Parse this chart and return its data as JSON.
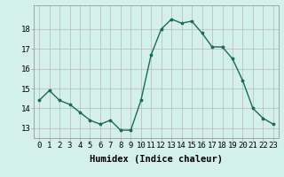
{
  "x": [
    0,
    1,
    2,
    3,
    4,
    5,
    6,
    7,
    8,
    9,
    10,
    11,
    12,
    13,
    14,
    15,
    16,
    17,
    18,
    19,
    20,
    21,
    22,
    23
  ],
  "y": [
    14.4,
    14.9,
    14.4,
    14.2,
    13.8,
    13.4,
    13.2,
    13.4,
    12.9,
    12.9,
    14.4,
    16.7,
    18.0,
    18.5,
    18.3,
    18.4,
    17.8,
    17.1,
    17.1,
    16.5,
    15.4,
    14.0,
    13.5,
    13.2
  ],
  "line_color": "#1a6b5a",
  "marker": "*",
  "marker_size": 2.5,
  "bg_color": "#d4f0eb",
  "grid_color": "#b8b8b8",
  "xlabel": "Humidex (Indice chaleur)",
  "ylabel_ticks": [
    13,
    14,
    15,
    16,
    17,
    18
  ],
  "ylim": [
    12.5,
    19.2
  ],
  "xlim": [
    -0.5,
    23.5
  ],
  "xtick_labels": [
    "0",
    "1",
    "2",
    "3",
    "4",
    "5",
    "6",
    "7",
    "8",
    "9",
    "10",
    "11",
    "12",
    "13",
    "14",
    "15",
    "16",
    "17",
    "18",
    "19",
    "20",
    "21",
    "22",
    "23"
  ],
  "xlabel_fontsize": 7.5,
  "tick_fontsize": 6.5,
  "line_width": 1.0
}
